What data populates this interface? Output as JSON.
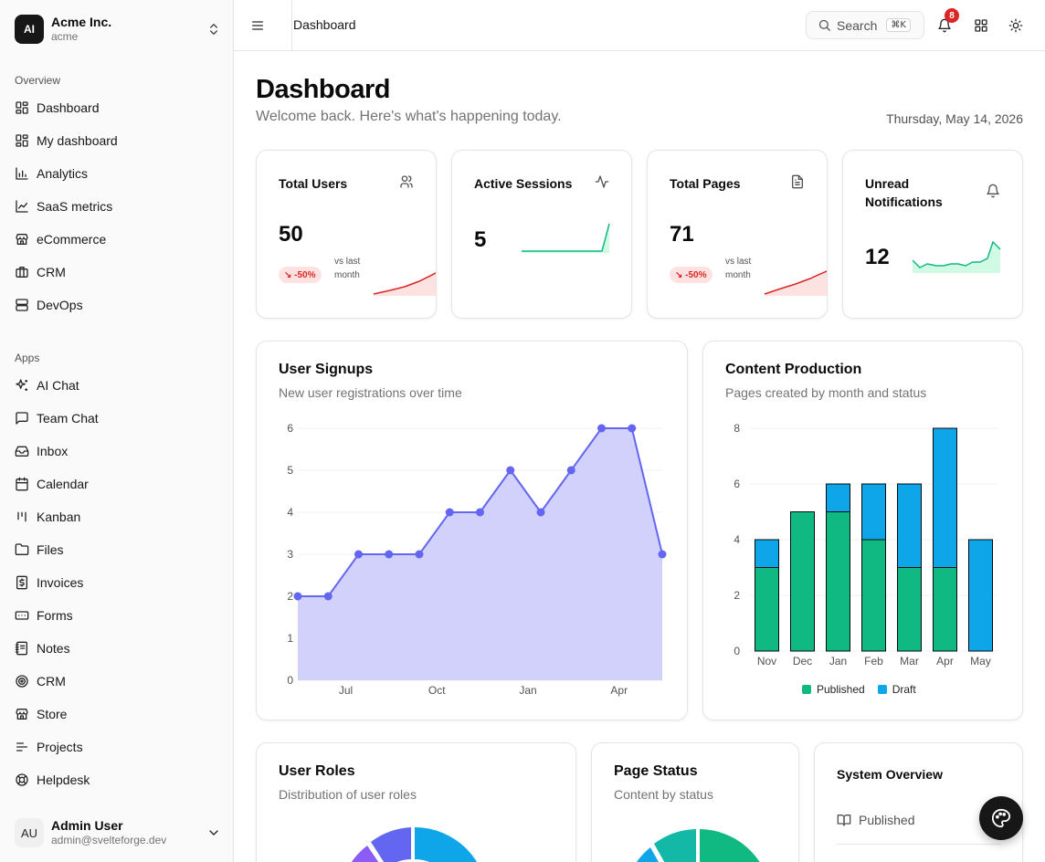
{
  "org": {
    "logo": "AI",
    "name": "Acme Inc.",
    "slug": "acme"
  },
  "sidebar": {
    "overview_label": "Overview",
    "overview_items": [
      {
        "label": "Dashboard",
        "icon": "layout-dashboard-icon"
      },
      {
        "label": "My dashboard",
        "icon": "layout-dashboard-icon"
      },
      {
        "label": "Analytics",
        "icon": "bar-chart-icon"
      },
      {
        "label": "SaaS metrics",
        "icon": "line-chart-icon"
      },
      {
        "label": "eCommerce",
        "icon": "store-icon"
      },
      {
        "label": "CRM",
        "icon": "briefcase-icon"
      },
      {
        "label": "DevOps",
        "icon": "server-icon"
      }
    ],
    "apps_label": "Apps",
    "apps_items": [
      {
        "label": "AI Chat",
        "icon": "sparkles-icon"
      },
      {
        "label": "Team Chat",
        "icon": "message-square-icon"
      },
      {
        "label": "Inbox",
        "icon": "inbox-icon"
      },
      {
        "label": "Calendar",
        "icon": "calendar-icon"
      },
      {
        "label": "Kanban",
        "icon": "kanban-icon"
      },
      {
        "label": "Files",
        "icon": "folder-icon"
      },
      {
        "label": "Invoices",
        "icon": "receipt-icon"
      },
      {
        "label": "Forms",
        "icon": "form-input-icon"
      },
      {
        "label": "Notes",
        "icon": "notebook-icon"
      },
      {
        "label": "CRM",
        "icon": "target-icon"
      },
      {
        "label": "Store",
        "icon": "store-icon"
      },
      {
        "label": "Projects",
        "icon": "list-icon"
      },
      {
        "label": "Helpdesk",
        "icon": "life-buoy-icon"
      }
    ]
  },
  "user": {
    "initials": "AU",
    "name": "Admin User",
    "email": "admin@svelteforge.dev"
  },
  "header": {
    "breadcrumb": "Dashboard",
    "search_label": "Search",
    "search_shortcut": "⌘K",
    "notification_count": "8"
  },
  "page": {
    "title": "Dashboard",
    "subtitle": "Welcome back. Here's what's happening today.",
    "date": "Thursday, May 14, 2026"
  },
  "stats": {
    "total_users": {
      "title": "Total Users",
      "value": "50",
      "trend": "↘ -50%",
      "note": "vs last month"
    },
    "active_sessions": {
      "title": "Active Sessions",
      "value": "5"
    },
    "total_pages": {
      "title": "Total Pages",
      "value": "71",
      "trend": "↘ -50%",
      "note": "vs last month"
    },
    "unread_notifications": {
      "title": "Unread Notifications",
      "value": "12"
    }
  },
  "signups": {
    "title": "User Signups",
    "subtitle": "New user registrations over time"
  },
  "content": {
    "title": "Content Production",
    "subtitle": "Pages created by month and status"
  },
  "roles": {
    "title": "User Roles",
    "subtitle": "Distribution of user roles"
  },
  "page_status": {
    "title": "Page Status",
    "subtitle": "Content by status"
  },
  "system": {
    "title": "System Overview",
    "rows": [
      {
        "label": "Published",
        "icon": "book-open-icon"
      }
    ]
  },
  "colors": {
    "accent": "#6366f1",
    "area_fill": "#d1d1fb",
    "published": "#10b981",
    "draft": "#0ea5e9",
    "negative": "#dc2626"
  },
  "chart_data": [
    {
      "type": "area",
      "title": "User Signups",
      "x_tick_labels": [
        "Jul",
        "Oct",
        "Jan",
        "Apr"
      ],
      "values": [
        2,
        2,
        3,
        3,
        3,
        4,
        4,
        5,
        4,
        5,
        6,
        6,
        3
      ],
      "ylim": [
        0,
        6
      ],
      "y_ticks": [
        0,
        1,
        2,
        3,
        4,
        5,
        6
      ],
      "grid": true
    },
    {
      "type": "bar",
      "title": "Content Production",
      "stacked": true,
      "categories": [
        "Nov",
        "Dec",
        "Jan",
        "Feb",
        "Mar",
        "Apr",
        "May"
      ],
      "series": [
        {
          "name": "Published",
          "values": [
            3,
            5,
            5,
            4,
            3,
            3,
            0
          ]
        },
        {
          "name": "Draft",
          "values": [
            1,
            0,
            1,
            2,
            3,
            5,
            4
          ]
        }
      ],
      "ylim": [
        0,
        8
      ],
      "y_ticks": [
        0,
        2,
        4,
        6,
        8
      ],
      "legend": "bottom",
      "grid": true
    }
  ]
}
